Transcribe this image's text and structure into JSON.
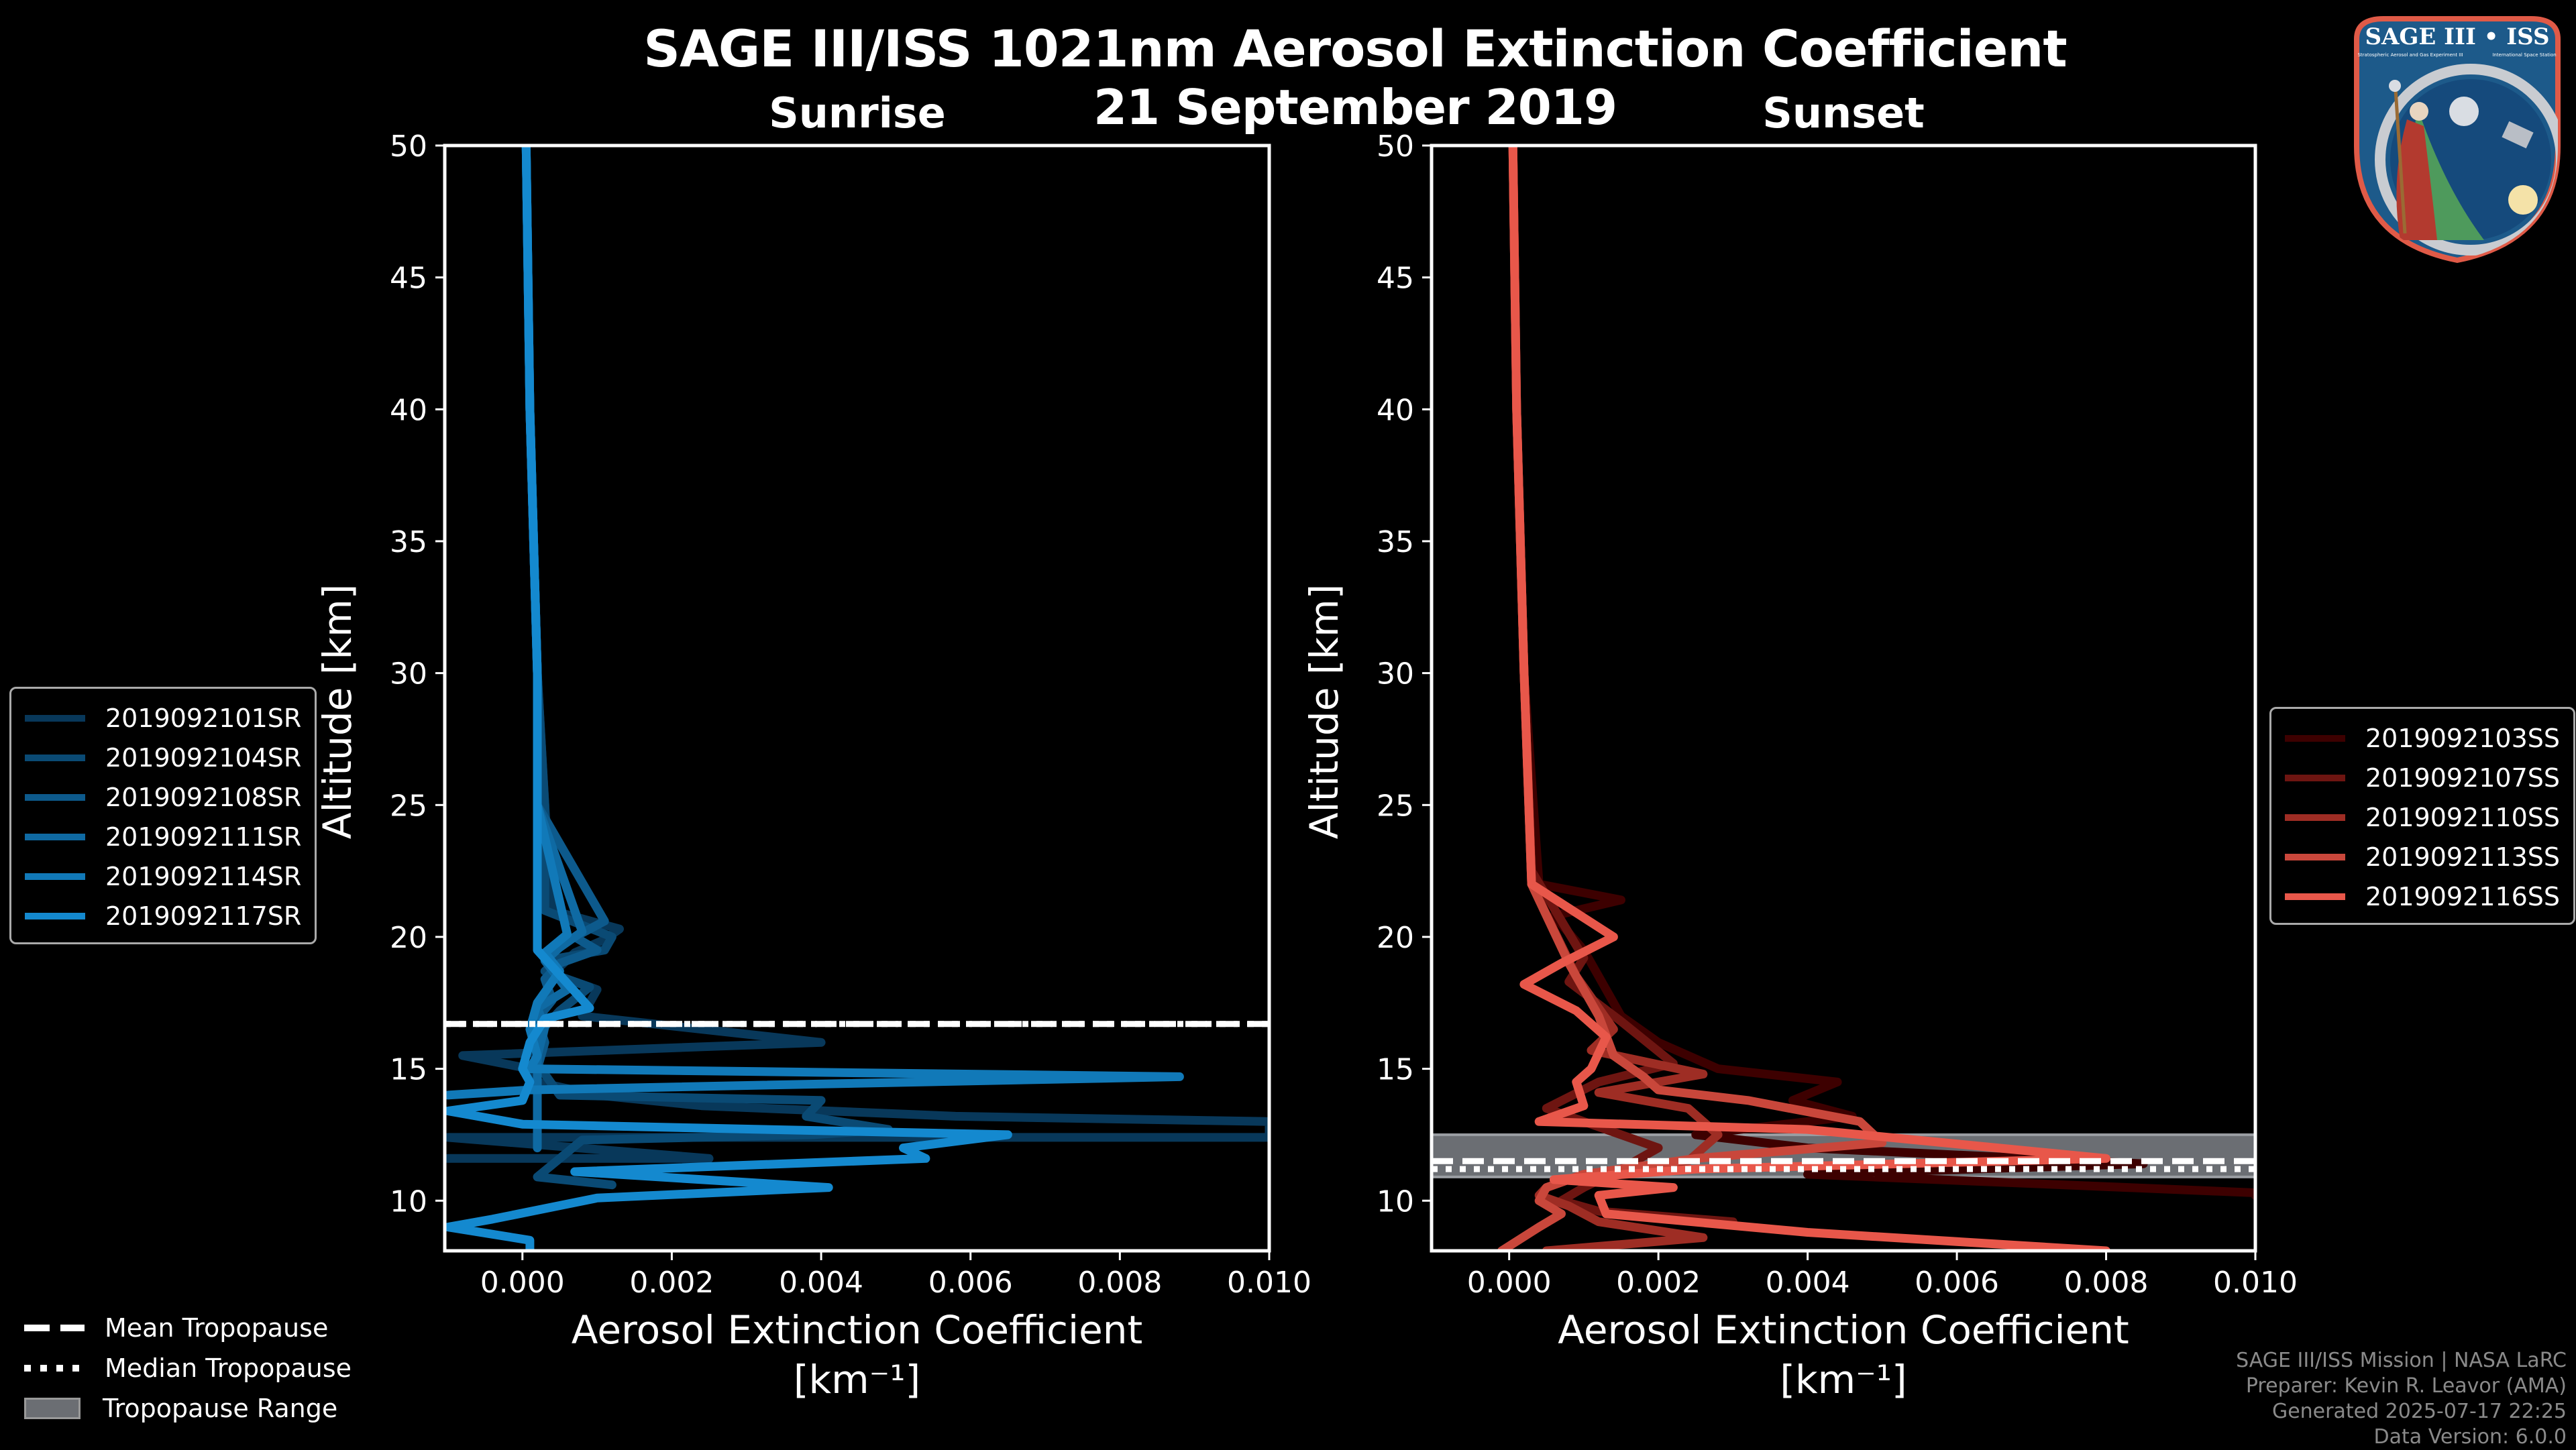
{
  "header": {
    "title": "SAGE III/ISS 1021nm Aerosol Extinction Coefficient",
    "subtitle": "21 September 2019"
  },
  "logo": {
    "title": "SAGE III • ISS",
    "subtitle_left": "Stratospheric Aerosol and Gas Experiment III",
    "subtitle_right": "International Space Station",
    "ring_text": "BALL • NASA LANGLEY RESEARCH CENTER • TAS-I • ESA"
  },
  "footer": {
    "line1": "SAGE III/ISS Mission | NASA LaRC",
    "line2": "Preparer: Kevin R. Leavor (AMA)",
    "line3": "Generated 2025-07-17 22:25",
    "line4": "Data Version: 6.0.0"
  },
  "tropopause_legend": {
    "mean": "Mean Tropopause",
    "median": "Median Tropopause",
    "range": "Tropopause Range",
    "range_color": "#6b6e73"
  },
  "chart_data": [
    {
      "type": "line",
      "title": "Sunrise",
      "xlabel": "Aerosol Extinction Coefficient",
      "xlabel_units": "[km⁻¹]",
      "ylabel": "Altitude [km]",
      "xlim": [
        -0.00104,
        0.01
      ],
      "ylim": [
        8.1,
        50
      ],
      "xticks": [
        "0.000",
        "0.002",
        "0.004",
        "0.006",
        "0.008",
        "0.010"
      ],
      "xtick_values": [
        0,
        0.002,
        0.004,
        0.006,
        0.008,
        0.01
      ],
      "yticks": [
        "10",
        "15",
        "20",
        "25",
        "30",
        "35",
        "40",
        "45",
        "50"
      ],
      "ytick_values": [
        10,
        15,
        20,
        25,
        30,
        35,
        40,
        45,
        50
      ],
      "legend_position": "left-outside",
      "tropopause": {
        "mean": 16.7,
        "median": 16.7,
        "range": null
      },
      "series": [
        {
          "name": "2019092101SR",
          "color": "#08385a",
          "x": [
            5e-05,
            0.0001,
            0.0002,
            0.0003,
            0.0004,
            0.0013,
            0.0011,
            0.0007,
            0.0004,
            0.001,
            0.0008,
            0.004,
            -0.0008,
            0.0001,
            0.0002,
            0.001,
            0.0024,
            0.0058,
            0.01,
            0.01,
            -0.001,
            0.0025,
            -0.001
          ],
          "y": [
            50,
            40,
            30,
            25,
            21.0,
            20.3,
            19.9,
            19.4,
            18.6,
            18.0,
            17.0,
            16.0,
            15.5,
            15.0,
            14.5,
            14.0,
            13.6,
            13.2,
            13.0,
            12.4,
            12.4,
            11.6,
            11.6
          ]
        },
        {
          "name": "2019092104SR",
          "color": "#0a4a74",
          "x": [
            5e-05,
            0.0001,
            0.0002,
            0.0003,
            0.0003,
            0.0012,
            0.0011,
            0.0005,
            0.0003,
            0.0009,
            0.0005,
            0.0003,
            0.0002,
            0.0005,
            0.004,
            0.0038,
            0.0049,
            0.0039,
            0.0008,
            0.0002,
            0.0012
          ],
          "y": [
            50,
            40,
            30,
            25,
            21.0,
            20.0,
            19.5,
            19.2,
            18.7,
            18.1,
            17.2,
            16.6,
            15.2,
            14.0,
            13.8,
            13.2,
            12.7,
            12.5,
            12.3,
            10.9,
            10.6
          ]
        },
        {
          "name": "2019092108SR",
          "color": "#0d5a8c",
          "x": [
            5e-05,
            0.0001,
            0.0002,
            0.0002,
            0.0011,
            0.0007,
            0.001,
            0.0005,
            0.0003,
            0.0004,
            0.0002,
            0.0003,
            0.0002
          ],
          "y": [
            50,
            40,
            30,
            25,
            20.6,
            20.0,
            19.5,
            19.0,
            18.4,
            17.6,
            16.9,
            16.0,
            15.0
          ]
        },
        {
          "name": "2019092111SR",
          "color": "#0f6aa3",
          "x": [
            5e-05,
            0.0001,
            0.0002,
            0.0002,
            0.0008,
            0.0005,
            0.0003,
            0.0006,
            0.0002,
            0.0003,
            0.0002,
            0.0002,
            0.0002
          ],
          "y": [
            50,
            40,
            30,
            25,
            20.2,
            19.6,
            19.1,
            18.0,
            17.3,
            16.6,
            15.5,
            13.0,
            12.0
          ]
        },
        {
          "name": "2019092114SR",
          "color": "#1179b8",
          "x": [
            5e-05,
            0.0001,
            0.0002,
            0.0002,
            0.0006,
            0.0003,
            0.0005,
            0.0002,
            0.0001,
            0.0002,
            0.0001,
            0.0088,
            0.0001,
            -0.001
          ],
          "y": [
            50,
            40,
            30,
            25,
            20.1,
            19.4,
            18.7,
            17.5,
            16.5,
            15.5,
            15.0,
            14.7,
            14.2,
            14.0
          ]
        },
        {
          "name": "2019092117SR",
          "color": "#1489cf",
          "x": [
            5e-05,
            0.0001,
            0.0002,
            0.0002,
            0.0002,
            0.0009,
            0.0003,
            0.0001,
            0.0,
            0.0001,
            0.0,
            -0.001,
            0.0,
            0.0065,
            0.0051,
            0.0054,
            0.0007,
            0.0041,
            0.001,
            -0.0004,
            -0.001,
            0.0001,
            0.0001
          ],
          "y": [
            50,
            40,
            30,
            25,
            19.5,
            17.3,
            16.9,
            16.0,
            15.0,
            14.5,
            13.8,
            13.4,
            12.9,
            12.5,
            12.0,
            11.6,
            11.1,
            10.5,
            10.1,
            9.3,
            9.0,
            8.5,
            8.1
          ]
        }
      ]
    },
    {
      "type": "line",
      "title": "Sunset",
      "xlabel": "Aerosol Extinction Coefficient",
      "xlabel_units": "[km⁻¹]",
      "ylabel": "Altitude [km]",
      "xlim": [
        -0.00104,
        0.01
      ],
      "ylim": [
        8.1,
        50
      ],
      "xticks": [
        "0.000",
        "0.002",
        "0.004",
        "0.006",
        "0.008",
        "0.010"
      ],
      "xtick_values": [
        0,
        0.002,
        0.004,
        0.006,
        0.008,
        0.01
      ],
      "yticks": [
        "10",
        "15",
        "20",
        "25",
        "30",
        "35",
        "40",
        "45",
        "50"
      ],
      "ytick_values": [
        10,
        15,
        20,
        25,
        30,
        35,
        40,
        45,
        50
      ],
      "legend_position": "right-outside",
      "tropopause": {
        "mean": 11.5,
        "median": 11.2,
        "range": [
          10.9,
          12.5
        ]
      },
      "series": [
        {
          "name": "2019092103SS",
          "color": "#3d0000",
          "x": [
            5e-05,
            0.0001,
            0.0002,
            0.0004,
            0.0015,
            0.0006,
            0.001,
            0.0012,
            0.0015,
            0.002,
            0.0028,
            0.0044,
            0.0038,
            0.0046,
            0.0025,
            0.004,
            0.0085,
            0.004,
            0.01,
            0.01
          ],
          "y": [
            50,
            40,
            30,
            22.0,
            21.4,
            20.8,
            19.5,
            18.5,
            17.0,
            16.0,
            15.0,
            14.5,
            13.8,
            13.2,
            12.5,
            12.0,
            11.4,
            11.0,
            10.3,
            10.2
          ]
        },
        {
          "name": "2019092107SS",
          "color": "#6e1511",
          "x": [
            5e-05,
            0.0001,
            0.0002,
            0.0003,
            0.001,
            0.0008,
            0.0015,
            0.0022,
            0.0012,
            0.0005,
            0.002,
            0.0015,
            0.001,
            0.0007,
            0.0012,
            0.003
          ],
          "y": [
            50,
            40,
            30,
            22.5,
            19.2,
            18.3,
            16.8,
            15.2,
            14.5,
            13.5,
            12.0,
            11.2,
            10.5,
            10.0,
            9.6,
            9.2
          ]
        },
        {
          "name": "2019092110SS",
          "color": "#9e2d24",
          "x": [
            5e-05,
            0.0001,
            0.0002,
            0.0003,
            0.0009,
            0.0014,
            0.0011,
            0.0026,
            0.0012,
            0.0024,
            0.0028,
            0.0024,
            0.001,
            0.0005,
            0.0004,
            0.0008,
            0.0012,
            0.0026,
            0.0005
          ],
          "y": [
            50,
            40,
            30,
            22,
            18.5,
            16.5,
            15.7,
            14.8,
            14.1,
            13.5,
            12.5,
            11.5,
            11.0,
            10.5,
            10.2,
            9.8,
            9.2,
            8.6,
            8.1
          ]
        },
        {
          "name": "2019092113SS",
          "color": "#c9473b",
          "x": [
            5e-05,
            0.0001,
            0.0002,
            0.0003,
            0.0008,
            0.0012,
            0.0014,
            0.0018,
            0.002,
            0.0032,
            0.0047,
            0.005,
            0.0025,
            0.001,
            0.0005,
            0.0004,
            0.0007,
            0.0004,
            -0.0001
          ],
          "y": [
            50,
            40,
            30,
            22,
            19.0,
            17.0,
            15.5,
            14.7,
            14.2,
            13.8,
            13.0,
            12.2,
            11.6,
            11.0,
            10.5,
            10.0,
            9.5,
            9.0,
            8.1
          ]
        },
        {
          "name": "2019092116SS",
          "color": "#e8574a",
          "x": [
            5e-05,
            0.0001,
            0.0002,
            0.0003,
            0.0014,
            0.0007,
            0.0002,
            0.0009,
            0.0013,
            0.0011,
            0.0009,
            0.001,
            0.0004,
            0.004,
            0.008,
            0.0025,
            0.0006,
            0.0022,
            0.0012,
            0.0013,
            0.004,
            0.008
          ],
          "y": [
            50,
            40,
            30,
            22,
            20.0,
            19.0,
            18.2,
            17.2,
            16.2,
            15.0,
            14.5,
            13.6,
            13.0,
            12.7,
            11.6,
            11.2,
            10.8,
            10.5,
            10.2,
            9.5,
            8.8,
            8.1
          ]
        }
      ]
    }
  ]
}
